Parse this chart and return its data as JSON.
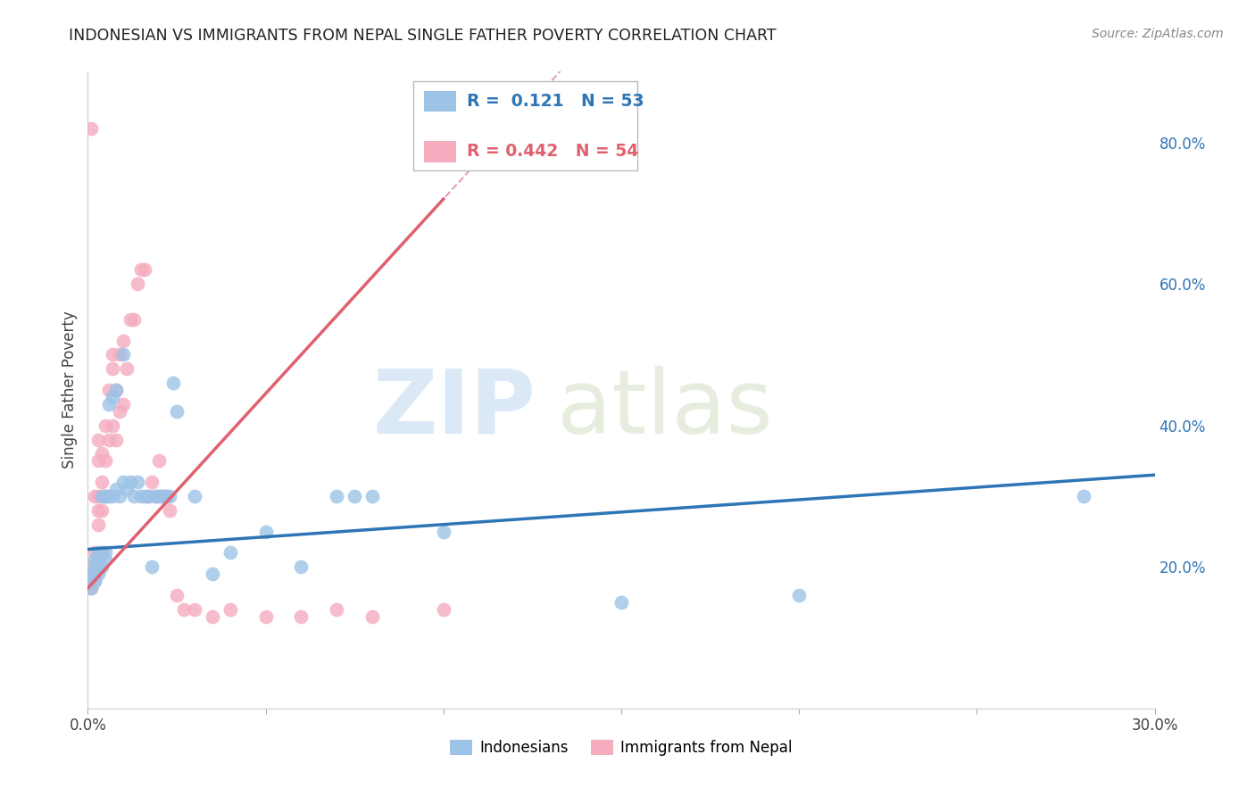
{
  "title": "INDONESIAN VS IMMIGRANTS FROM NEPAL SINGLE FATHER POVERTY CORRELATION CHART",
  "source": "Source: ZipAtlas.com",
  "ylabel": "Single Father Poverty",
  "xlim": [
    0.0,
    0.3
  ],
  "ylim": [
    0.0,
    0.9
  ],
  "x_ticks": [
    0.0,
    0.05,
    0.1,
    0.15,
    0.2,
    0.25,
    0.3
  ],
  "x_tick_labels": [
    "0.0%",
    "",
    "",
    "",
    "",
    "",
    "30.0%"
  ],
  "y_ticks_right": [
    0.2,
    0.4,
    0.6,
    0.8
  ],
  "y_tick_labels_right": [
    "20.0%",
    "40.0%",
    "60.0%",
    "80.0%"
  ],
  "legend_label1": "Indonesians",
  "legend_label2": "Immigrants from Nepal",
  "r1": 0.121,
  "n1": 53,
  "r2": 0.442,
  "n2": 54,
  "color_blue": "#9DC3E6",
  "color_pink": "#F4ACBE",
  "color_blue_line": "#2E75B6",
  "color_pink_line": "#E06070",
  "color_blue_text": "#2E75B6",
  "color_pink_text": "#E06070",
  "background_color": "#FFFFFF",
  "grid_color": "#CCCCCC",
  "indonesian_x": [
    0.001,
    0.001,
    0.001,
    0.002,
    0.002,
    0.002,
    0.002,
    0.003,
    0.003,
    0.003,
    0.003,
    0.004,
    0.004,
    0.004,
    0.005,
    0.005,
    0.005,
    0.006,
    0.006,
    0.007,
    0.007,
    0.008,
    0.008,
    0.009,
    0.01,
    0.01,
    0.011,
    0.012,
    0.013,
    0.014,
    0.015,
    0.016,
    0.017,
    0.018,
    0.019,
    0.02,
    0.021,
    0.022,
    0.023,
    0.024,
    0.025,
    0.03,
    0.035,
    0.04,
    0.05,
    0.06,
    0.07,
    0.075,
    0.08,
    0.1,
    0.15,
    0.2,
    0.28
  ],
  "indonesian_y": [
    0.17,
    0.18,
    0.19,
    0.18,
    0.19,
    0.2,
    0.21,
    0.19,
    0.2,
    0.21,
    0.22,
    0.2,
    0.22,
    0.3,
    0.21,
    0.22,
    0.3,
    0.3,
    0.43,
    0.3,
    0.44,
    0.31,
    0.45,
    0.3,
    0.32,
    0.5,
    0.31,
    0.32,
    0.3,
    0.32,
    0.3,
    0.3,
    0.3,
    0.2,
    0.3,
    0.3,
    0.3,
    0.3,
    0.3,
    0.46,
    0.42,
    0.3,
    0.19,
    0.22,
    0.25,
    0.2,
    0.3,
    0.3,
    0.3,
    0.25,
    0.15,
    0.16,
    0.3
  ],
  "nepal_x": [
    0.001,
    0.001,
    0.001,
    0.001,
    0.001,
    0.002,
    0.002,
    0.002,
    0.002,
    0.003,
    0.003,
    0.003,
    0.003,
    0.003,
    0.004,
    0.004,
    0.004,
    0.005,
    0.005,
    0.005,
    0.006,
    0.006,
    0.007,
    0.007,
    0.007,
    0.008,
    0.008,
    0.009,
    0.009,
    0.01,
    0.01,
    0.011,
    0.012,
    0.013,
    0.014,
    0.015,
    0.016,
    0.017,
    0.018,
    0.019,
    0.02,
    0.021,
    0.022,
    0.023,
    0.025,
    0.027,
    0.03,
    0.035,
    0.04,
    0.05,
    0.06,
    0.07,
    0.08,
    0.1
  ],
  "nepal_y": [
    0.17,
    0.18,
    0.19,
    0.2,
    0.82,
    0.18,
    0.19,
    0.22,
    0.3,
    0.26,
    0.28,
    0.3,
    0.35,
    0.38,
    0.28,
    0.32,
    0.36,
    0.3,
    0.35,
    0.4,
    0.38,
    0.45,
    0.4,
    0.48,
    0.5,
    0.38,
    0.45,
    0.42,
    0.5,
    0.43,
    0.52,
    0.48,
    0.55,
    0.55,
    0.6,
    0.62,
    0.62,
    0.3,
    0.32,
    0.3,
    0.35,
    0.3,
    0.3,
    0.28,
    0.16,
    0.14,
    0.14,
    0.13,
    0.14,
    0.13,
    0.13,
    0.14,
    0.13,
    0.14
  ],
  "reg_indo_slope": 0.35,
  "reg_indo_intercept": 0.225,
  "reg_nepal_slope": 5.5,
  "reg_nepal_intercept": 0.17
}
